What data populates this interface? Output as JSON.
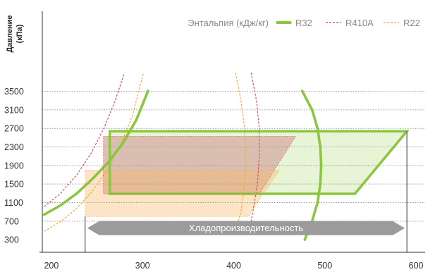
{
  "chart_data": {
    "type": "line",
    "ylabel": [
      "Давление",
      "(кПа)"
    ],
    "legend_title": "Энтальпия (кДж/кг)",
    "xlim": [
      190,
      610
    ],
    "ylim": [
      150,
      3950
    ],
    "x_ticks": [
      200,
      300,
      400,
      500,
      600
    ],
    "y_ticks": [
      300,
      700,
      1100,
      1500,
      1900,
      2300,
      2700,
      3100,
      3500
    ],
    "grid": "horizontal-dotted",
    "legend_position": "top-right",
    "capacity_label": "Хладопроизводительность",
    "capacity_range": [
      237,
      590
    ],
    "series": [
      {
        "name": "R32",
        "style": "solid",
        "color": "#8cc63f",
        "operating_region": [
          [
            264,
            2640
          ],
          [
            590,
            2640
          ],
          [
            533,
            1290
          ],
          [
            264,
            1290
          ]
        ],
        "saturation_liquid": [
          [
            192,
            840
          ],
          [
            210,
            1040
          ],
          [
            228,
            1300
          ],
          [
            245,
            1610
          ],
          [
            262,
            1960
          ],
          [
            278,
            2370
          ],
          [
            293,
            2880
          ],
          [
            306,
            3510
          ]
        ],
        "saturation_vapor": [
          [
            475,
            3510
          ],
          [
            486,
            3100
          ],
          [
            492,
            2700
          ],
          [
            495,
            2300
          ],
          [
            496,
            1900
          ],
          [
            495,
            1500
          ],
          [
            492,
            1100
          ],
          [
            486,
            700
          ],
          [
            478,
            300
          ]
        ]
      },
      {
        "name": "R410A",
        "style": "dashed",
        "color": "#d9405a",
        "operating_region": [
          [
            257,
            2530
          ],
          [
            468,
            2530
          ],
          [
            428,
            1290
          ],
          [
            257,
            1290
          ]
        ],
        "saturation_liquid": [
          [
            192,
            1010
          ],
          [
            210,
            1300
          ],
          [
            228,
            1700
          ],
          [
            244,
            2180
          ],
          [
            258,
            2720
          ],
          [
            270,
            3300
          ],
          [
            280,
            3900
          ]
        ],
        "saturation_vapor": [
          [
            419,
            3900
          ],
          [
            425,
            3300
          ],
          [
            428,
            2700
          ],
          [
            428,
            2100
          ],
          [
            426,
            1500
          ],
          [
            421,
            900
          ],
          [
            418,
            600
          ]
        ]
      },
      {
        "name": "R22",
        "style": "dashed",
        "color": "#f5a623",
        "operating_region": [
          [
            237,
            1800
          ],
          [
            450,
            1800
          ],
          [
            416,
            800
          ],
          [
            237,
            800
          ]
        ],
        "saturation_liquid": [
          [
            192,
            480
          ],
          [
            210,
            690
          ],
          [
            228,
            980
          ],
          [
            245,
            1350
          ],
          [
            261,
            1800
          ],
          [
            276,
            2350
          ],
          [
            289,
            2980
          ],
          [
            301,
            3900
          ]
        ],
        "saturation_vapor": [
          [
            402,
            3900
          ],
          [
            408,
            3300
          ],
          [
            412,
            2700
          ],
          [
            413,
            2100
          ],
          [
            412,
            1500
          ],
          [
            408,
            900
          ],
          [
            402,
            500
          ]
        ]
      }
    ]
  },
  "colors": {
    "R32": "#8cc63f",
    "R410A": "#d9405a",
    "R22": "#f5a623",
    "R32_fill": "#e4f4d2",
    "R410A_fill": "#e8a7b4",
    "R22_fill": "#f7b968",
    "overlap_fill": "#cfb59f",
    "arrow": "#9b9b9b",
    "grid": "#9a9a9a",
    "axis": "#333333"
  }
}
